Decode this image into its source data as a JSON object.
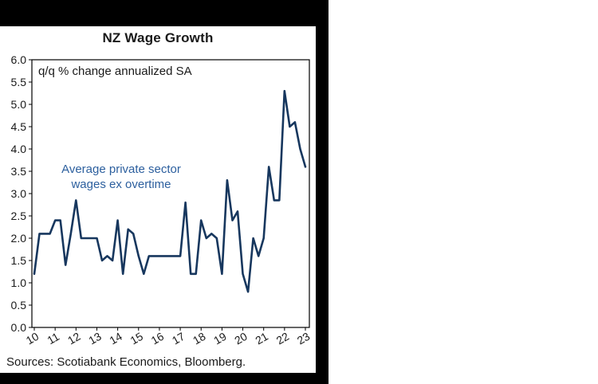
{
  "title": "NZ Wage Growth",
  "subtitle": "q/q % change annualized SA",
  "annotation": {
    "line1": "Average private sector",
    "line2": "wages ex overtime",
    "color": "#2c5f9e"
  },
  "sources": "Sources: Scotiabank Economics, Bloomberg.",
  "colors": {
    "line": "#17375e",
    "axis": "#000000",
    "frame_background": "#000000"
  },
  "chart_data": {
    "type": "line",
    "title": "NZ Wage Growth",
    "ylabel": "q/q % change annualized SA",
    "ylim": [
      0.0,
      6.0
    ],
    "y_tick_labels": [
      "0.0",
      "0.5",
      "1.0",
      "1.5",
      "2.0",
      "2.5",
      "3.0",
      "3.5",
      "4.0",
      "4.5",
      "5.0",
      "5.5",
      "6.0"
    ],
    "x_tick_labels": [
      "10",
      "11",
      "12",
      "13",
      "14",
      "15",
      "16",
      "17",
      "18",
      "19",
      "20",
      "21",
      "22",
      "23"
    ],
    "x_start_year": 2010,
    "frequency": "quarterly",
    "legend_position": "none",
    "grid": false,
    "series": [
      {
        "name": "Average private sector wages ex overtime",
        "color": "#17375e",
        "values": [
          1.2,
          2.1,
          2.1,
          2.1,
          2.4,
          2.4,
          1.4,
          2.1,
          2.85,
          2.0,
          2.0,
          2.0,
          2.0,
          1.5,
          1.6,
          1.5,
          2.4,
          1.2,
          2.2,
          2.1,
          1.6,
          1.2,
          1.6,
          1.6,
          1.6,
          1.6,
          1.6,
          1.6,
          1.6,
          2.8,
          1.2,
          1.2,
          2.4,
          2.0,
          2.1,
          2.0,
          1.2,
          3.3,
          2.4,
          2.6,
          1.2,
          0.8,
          2.0,
          1.6,
          2.0,
          3.6,
          2.85,
          2.85,
          5.3,
          4.5,
          4.6,
          4.0,
          3.6
        ]
      }
    ]
  }
}
